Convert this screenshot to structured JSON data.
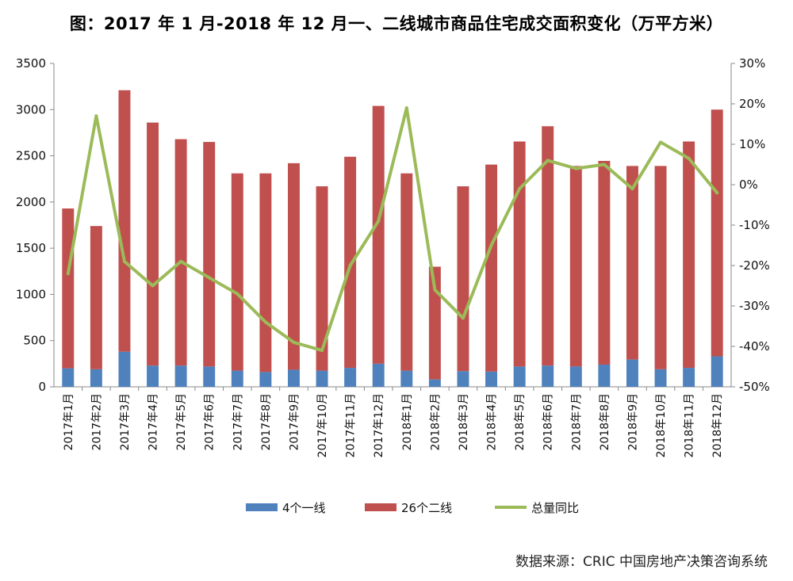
{
  "title": "图：2017 年 1 月-2018 年 12 月一、二线城市商品住宅成交面积变化（万平方米）",
  "source": "数据来源：CRIC 中国房地产决策咨询系统",
  "chart_data": {
    "type": "bar",
    "stacked": true,
    "categories": [
      "2017年1月",
      "2017年2月",
      "2017年3月",
      "2017年4月",
      "2017年5月",
      "2017年6月",
      "2017年7月",
      "2017年8月",
      "2017年9月",
      "2017年10月",
      "2017年11月",
      "2017年12月",
      "2018年1月",
      "2018年2月",
      "2018年3月",
      "2018年4月",
      "2018年5月",
      "2018年6月",
      "2018年7月",
      "2018年8月",
      "2018年9月",
      "2018年10月",
      "2018年11月",
      "2018年12月"
    ],
    "series": [
      {
        "name": "4个一线",
        "type": "bar",
        "axis": "left",
        "color": "#4f81bd",
        "values": [
          200,
          190,
          380,
          230,
          230,
          220,
          175,
          160,
          185,
          175,
          205,
          250,
          175,
          80,
          170,
          165,
          220,
          230,
          220,
          240,
          295,
          190,
          205,
          330
        ]
      },
      {
        "name": "26个二线",
        "type": "bar",
        "axis": "left",
        "color": "#c0504d",
        "values": [
          1730,
          1550,
          2830,
          2630,
          2450,
          2430,
          2135,
          2150,
          2235,
          1995,
          2285,
          2790,
          2135,
          1220,
          2000,
          2240,
          2435,
          2590,
          2170,
          2205,
          2095,
          2200,
          2450,
          2670
        ]
      },
      {
        "name": "总量同比",
        "type": "line",
        "axis": "right",
        "color": "#9bbb59",
        "values": [
          -22,
          17,
          -19,
          -25,
          -19,
          -23,
          -27,
          -34,
          -39,
          -41,
          -20,
          -9,
          19,
          -26,
          -33,
          -15,
          -1,
          6,
          4,
          5,
          -1,
          10.5,
          6.5,
          -2
        ]
      }
    ],
    "y_left": {
      "min": 0,
      "max": 3500,
      "ticks": [
        "0",
        "500",
        "1000",
        "1500",
        "2000",
        "2500",
        "3000",
        "3500"
      ]
    },
    "y_right": {
      "min": -50,
      "max": 30,
      "ticks": [
        "-50%",
        "-40%",
        "-30%",
        "-20%",
        "-10%",
        "0%",
        "10%",
        "20%",
        "30%"
      ]
    },
    "grid": false,
    "legend_position": "bottom"
  }
}
